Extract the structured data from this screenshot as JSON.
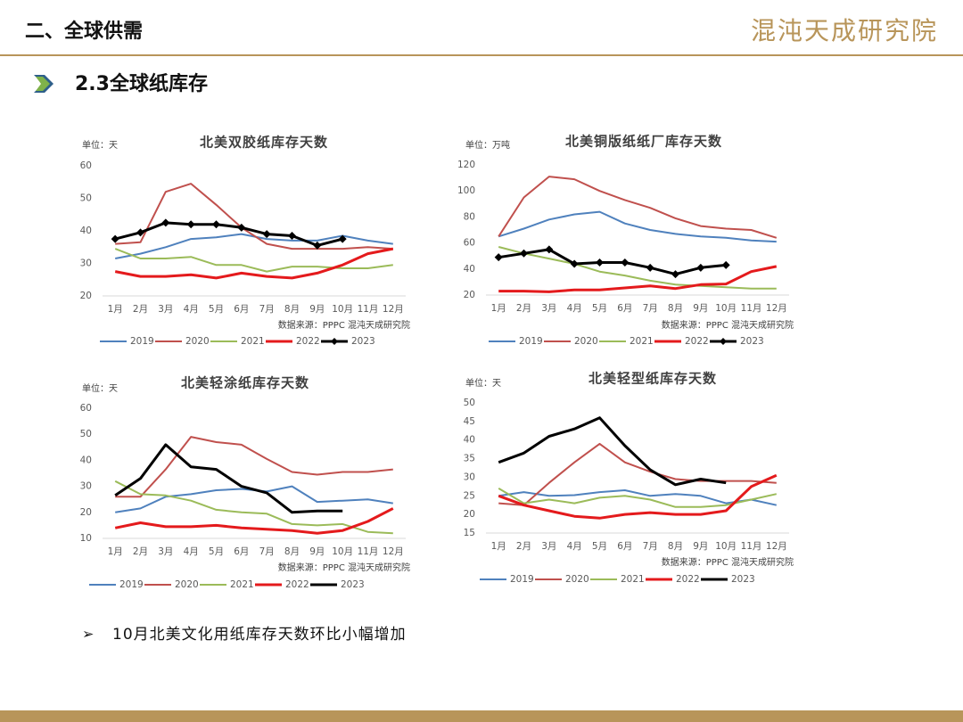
{
  "header": {
    "title": "二、全球供需",
    "logo": "混沌天成研究院"
  },
  "section": {
    "title": "2.3全球纸库存"
  },
  "bullet": "10月北美文化用纸库存天数环比小幅增加",
  "chart_data": [
    {
      "type": "line",
      "title": "北美双胶纸库存天数",
      "unit": "单位：天",
      "source": "数据来源：PPPC 混沌天成研究院",
      "categories": [
        "1月",
        "2月",
        "3月",
        "4月",
        "5月",
        "6月",
        "7月",
        "8月",
        "9月",
        "10月",
        "11月",
        "12月"
      ],
      "ylim": [
        20,
        60
      ],
      "yticks": [
        20,
        30,
        40,
        50,
        60
      ],
      "series": [
        {
          "name": "2019",
          "color": "#4f81bd",
          "values": [
            31.5,
            33,
            35,
            37.5,
            38,
            39,
            37.5,
            37,
            37,
            38.5,
            37,
            36
          ]
        },
        {
          "name": "2020",
          "color": "#c0504d",
          "values": [
            36,
            36.5,
            52,
            54.5,
            48,
            41,
            36,
            34.5,
            34.5,
            34.5,
            35,
            34.5
          ]
        },
        {
          "name": "2021",
          "color": "#9bbb59",
          "values": [
            34.5,
            31.5,
            31.5,
            32,
            29.5,
            29.5,
            27.5,
            29,
            29,
            28.5,
            28.5,
            29.5
          ]
        },
        {
          "name": "2022",
          "color": "#e41a1c",
          "values": [
            27.5,
            26,
            26,
            26.5,
            25.5,
            27,
            26,
            25.5,
            27,
            29.5,
            33,
            34.5
          ]
        },
        {
          "name": "2023",
          "color": "#000000",
          "marker": "diamond",
          "values": [
            37.5,
            39.5,
            42.5,
            42,
            42,
            41,
            39,
            38.5,
            35.5,
            37.5,
            null,
            null
          ]
        }
      ]
    },
    {
      "type": "line",
      "title": "北美铜版纸纸厂库存天数",
      "unit": "单位：万吨",
      "source": "数据来源：PPPC 混沌天成研究院",
      "categories": [
        "1月",
        "2月",
        "3月",
        "4月",
        "5月",
        "6月",
        "7月",
        "8月",
        "9月",
        "10月",
        "11月",
        "12月"
      ],
      "ylim": [
        20,
        120
      ],
      "yticks": [
        20,
        40,
        60,
        80,
        100,
        120
      ],
      "series": [
        {
          "name": "2019",
          "color": "#4f81bd",
          "values": [
            65,
            71,
            78,
            82,
            84,
            75,
            70,
            67,
            65,
            64,
            62,
            61
          ]
        },
        {
          "name": "2020",
          "color": "#c0504d",
          "values": [
            65,
            95,
            111,
            109,
            100,
            93,
            87,
            79,
            73,
            71,
            70,
            64
          ]
        },
        {
          "name": "2021",
          "color": "#9bbb59",
          "values": [
            57,
            52,
            48,
            44,
            38,
            35,
            31,
            28,
            27,
            26,
            25,
            25
          ]
        },
        {
          "name": "2022",
          "color": "#e41a1c",
          "values": [
            23,
            23,
            22.5,
            24,
            24,
            25.5,
            27,
            25,
            28,
            28.5,
            38,
            42
          ]
        },
        {
          "name": "2023",
          "color": "#000000",
          "marker": "diamond",
          "values": [
            49,
            52,
            55,
            44,
            45,
            45,
            41,
            36,
            41,
            43,
            null,
            null
          ]
        }
      ]
    },
    {
      "type": "line",
      "title": "北美轻涂纸库存天数",
      "unit": "单位：天",
      "source": "数据来源：PPPC 混沌天成研究院",
      "categories": [
        "1月",
        "2月",
        "3月",
        "4月",
        "5月",
        "6月",
        "7月",
        "8月",
        "9月",
        "10月",
        "11月",
        "12月"
      ],
      "ylim": [
        10,
        60
      ],
      "yticks": [
        10,
        20,
        30,
        40,
        50,
        60
      ],
      "series": [
        {
          "name": "2019",
          "color": "#4f81bd",
          "values": [
            20,
            21.5,
            26,
            27,
            28.5,
            29,
            28,
            30,
            24,
            24.5,
            25,
            23.5
          ]
        },
        {
          "name": "2020",
          "color": "#c0504d",
          "values": [
            26,
            26,
            36.5,
            49,
            47,
            46,
            40.5,
            35.5,
            34.5,
            35.5,
            35.5,
            36.5
          ]
        },
        {
          "name": "2021",
          "color": "#9bbb59",
          "values": [
            32,
            27,
            26.5,
            24.5,
            21,
            20,
            19.5,
            15.5,
            15,
            15.5,
            12.5,
            12
          ]
        },
        {
          "name": "2022",
          "color": "#e41a1c",
          "values": [
            14,
            16,
            14.5,
            14.5,
            15,
            14,
            13.5,
            13,
            12,
            13,
            16.5,
            21.5
          ]
        },
        {
          "name": "2023",
          "color": "#000000",
          "values": [
            26.5,
            33,
            46,
            37.5,
            36.5,
            30,
            27.5,
            20,
            20.5,
            20.5,
            null,
            null
          ]
        }
      ]
    },
    {
      "type": "line",
      "title": "北美轻型纸库存天数",
      "unit": "单位：天",
      "source": "数据来源：PPPC 混沌天成研究院",
      "categories": [
        "1月",
        "2月",
        "3月",
        "4月",
        "5月",
        "6月",
        "7月",
        "8月",
        "9月",
        "10月",
        "11月",
        "12月"
      ],
      "ylim": [
        15,
        50
      ],
      "yticks": [
        15,
        20,
        25,
        30,
        35,
        40,
        45,
        50
      ],
      "series": [
        {
          "name": "2019",
          "color": "#4f81bd",
          "values": [
            25,
            26,
            25,
            25.2,
            26,
            26.5,
            25,
            25.5,
            25,
            23,
            24,
            22.5
          ]
        },
        {
          "name": "2020",
          "color": "#c0504d",
          "values": [
            23,
            22.5,
            28.5,
            34,
            39,
            34,
            31.5,
            29.5,
            29,
            29,
            29,
            28.5
          ]
        },
        {
          "name": "2021",
          "color": "#9bbb59",
          "values": [
            27,
            23,
            24,
            23,
            24.5,
            25,
            24,
            22,
            22,
            22.5,
            24,
            25.5
          ]
        },
        {
          "name": "2022",
          "color": "#e41a1c",
          "values": [
            25,
            22.5,
            21,
            19.5,
            19,
            20,
            20.5,
            20,
            20,
            21,
            27.5,
            30.5
          ]
        },
        {
          "name": "2023",
          "color": "#000000",
          "values": [
            34,
            36.5,
            41,
            43,
            46,
            38.5,
            32,
            28,
            29.5,
            28.5,
            null,
            null
          ]
        }
      ]
    }
  ]
}
